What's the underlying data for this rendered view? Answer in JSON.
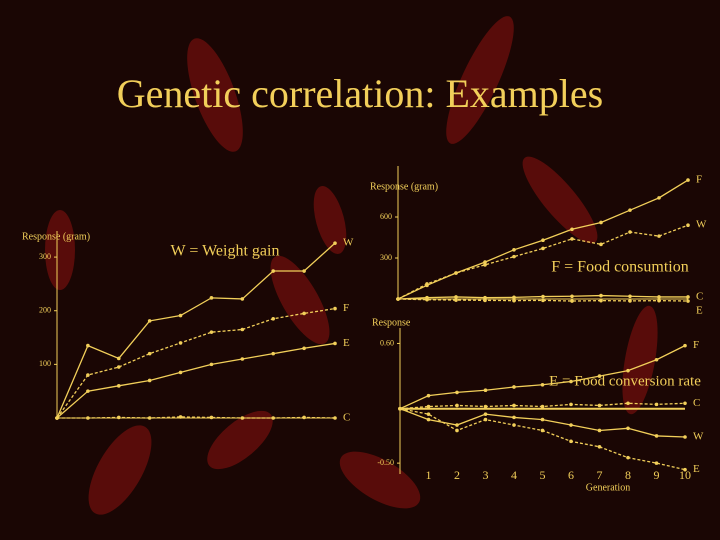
{
  "title": "Genetic correlation: Examples",
  "chart_data": [
    {
      "type": "line",
      "ylabel": "Response (gram)",
      "annotation": "W = Weight gain",
      "color": "#f2cf5a",
      "x": [
        0,
        1,
        2,
        3,
        4,
        5,
        6,
        7,
        8,
        9
      ],
      "xlim": [
        0,
        9
      ],
      "ylim": [
        0,
        330
      ],
      "yticks": [
        100,
        200,
        300
      ],
      "series": [
        {
          "name": "W",
          "values": [
            0,
            135,
            111,
            181,
            191,
            224,
            222,
            274,
            274,
            326
          ]
        },
        {
          "name": "F",
          "values": [
            0,
            80,
            95,
            120,
            140,
            160,
            165,
            185,
            195,
            204
          ]
        },
        {
          "name": "E",
          "values": [
            0,
            50,
            60,
            70,
            85,
            100,
            110,
            120,
            130,
            139
          ]
        },
        {
          "name": "C",
          "values": [
            0,
            0,
            1,
            0,
            2,
            1,
            0,
            0,
            1,
            0
          ]
        }
      ]
    },
    {
      "type": "line",
      "ylabel": "Response (gram)",
      "annotation": "F = Food consumtion",
      "color": "#f2cf5a",
      "x": [
        0,
        1,
        2,
        3,
        4,
        5,
        6,
        7,
        8,
        9,
        10
      ],
      "xlim": [
        0,
        10
      ],
      "ylim": [
        0,
        900
      ],
      "yticks": [
        300,
        600
      ],
      "series": [
        {
          "name": "F",
          "values": [
            0,
            100,
            190,
            270,
            360,
            430,
            510,
            560,
            650,
            740,
            870
          ]
        },
        {
          "name": "W",
          "values": [
            0,
            110,
            190,
            250,
            310,
            370,
            440,
            400,
            490,
            460,
            540
          ]
        },
        {
          "name": "C",
          "values": [
            0,
            10,
            15,
            10,
            12,
            18,
            20,
            25,
            20,
            15,
            15
          ]
        },
        {
          "name": "E",
          "values": [
            0,
            -5,
            -8,
            -10,
            -12,
            -10,
            -15,
            -12,
            -14,
            -12,
            -15
          ]
        }
      ]
    },
    {
      "type": "line",
      "ylabel": "Response",
      "annotation": "E = Food conversion rate",
      "xlabel": "Generation",
      "color": "#f2cf5a",
      "x": [
        0,
        1,
        2,
        3,
        4,
        5,
        6,
        7,
        8,
        9,
        10
      ],
      "xlim": [
        0,
        10
      ],
      "xticks": [
        1,
        2,
        3,
        4,
        5,
        6,
        7,
        8,
        9,
        10
      ],
      "ylim": [
        -0.6,
        0.65
      ],
      "yticks": [
        {
          "value": 0.6,
          "label": "0.60"
        },
        {
          "value": -0.5,
          "label": "-0.50"
        }
      ],
      "series": [
        {
          "name": "F",
          "values": [
            0,
            0.12,
            0.15,
            0.17,
            0.2,
            0.22,
            0.25,
            0.3,
            0.35,
            0.45,
            0.58
          ]
        },
        {
          "name": "C",
          "values": [
            0,
            0.02,
            0.03,
            0.02,
            0.03,
            0.02,
            0.04,
            0.03,
            0.05,
            0.04,
            0.05
          ]
        },
        {
          "name": "W",
          "values": [
            0,
            -0.1,
            -0.15,
            -0.05,
            -0.08,
            -0.1,
            -0.15,
            -0.2,
            -0.18,
            -0.25,
            -0.26
          ]
        },
        {
          "name": "E",
          "values": [
            0,
            -0.05,
            -0.2,
            -0.1,
            -0.15,
            -0.2,
            -0.3,
            -0.35,
            -0.45,
            -0.5,
            -0.56
          ]
        }
      ]
    }
  ]
}
